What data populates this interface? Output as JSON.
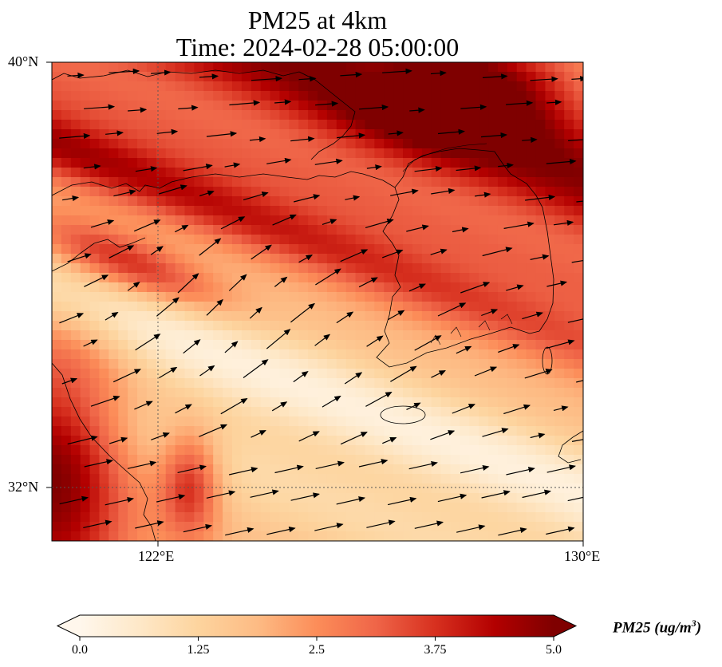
{
  "title": {
    "line1": "PM25 at 4km",
    "line2": "Time: 2024-02-28 05:00:00"
  },
  "axes": {
    "lat_labels": [
      "40°N",
      "32°N"
    ],
    "lon_labels": [
      "122°E",
      "130°E"
    ],
    "lon_range": [
      120,
      130
    ],
    "lat_range": [
      31,
      40
    ],
    "gridlines": {
      "lon": [
        122
      ],
      "lat": [
        32
      ],
      "style": "dotted"
    }
  },
  "colorbar": {
    "label": "PM25 (ug/m",
    "label_superscript": "3",
    "label_close": ")",
    "ticks": [
      "0.0",
      "1.25",
      "2.5",
      "3.75",
      "5.0"
    ],
    "range": [
      0,
      5
    ],
    "colormap": "OrRd",
    "extend": "both",
    "colors": [
      "#fff7ec",
      "#fee8c8",
      "#fdd49e",
      "#fdbb84",
      "#fc8d59",
      "#ef6548",
      "#d7301f",
      "#b30000",
      "#7f0000"
    ]
  },
  "chart_data": {
    "type": "heatmap",
    "variable": "PM25",
    "units": "ug/m3",
    "level": "4km",
    "time": "2024-02-28 05:00:00",
    "region": {
      "lon": [
        120,
        130
      ],
      "lat": [
        31,
        40
      ]
    },
    "overlay": "wind vectors (west-southwest winds, mostly eastward/northeastward)",
    "features": [
      {
        "description": "high PM25 band",
        "value_range": [
          4.0,
          5.0
        ],
        "lat_range": [
          37.5,
          40
        ],
        "lon_range": [
          120,
          130
        ]
      },
      {
        "description": "high PM25 band",
        "value_range": [
          3.5,
          4.5
        ],
        "lat_range": [
          35.5,
          37
        ],
        "lon_range": [
          120,
          127
        ]
      },
      {
        "description": "high PM25 near coast",
        "value_range": [
          4.0,
          5.0
        ],
        "lat_range": [
          31,
          33.5
        ],
        "lon_range": [
          120,
          121.5
        ]
      },
      {
        "description": "low PM25 corridor",
        "value_range": [
          0.2,
          1.0
        ],
        "lat_range": [
          31,
          34
        ],
        "lon_range": [
          121.5,
          130
        ]
      }
    ]
  }
}
